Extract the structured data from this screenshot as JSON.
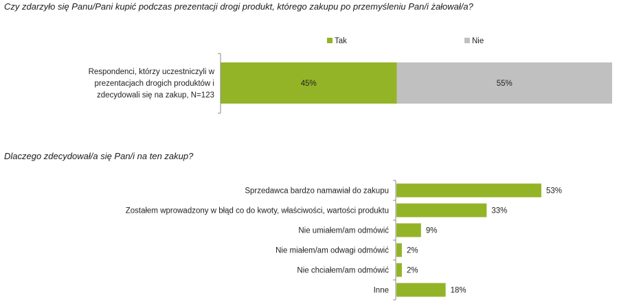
{
  "chart_data": [
    {
      "type": "bar",
      "stacked": true,
      "orientation": "horizontal",
      "title": "Czy zdarzyło się Panu/Pani kupić podczas prezentacji drogi produkt, którego zakupu po przemyśleniu Pan/i żałował/a?",
      "categories": [
        "Respondenci, którzy uczestniczyli w prezentacjach drogich produktów i zdecydowali się na zakup, N=123"
      ],
      "category_lines": [
        "Respondenci, którzy uczestniczyli w",
        "prezentacjach drogich produktów i",
        "zdecydowali się na zakup, N=123"
      ],
      "series": [
        {
          "name": "Tak",
          "values": [
            45
          ],
          "labels": [
            "45%"
          ],
          "color": "#94b427"
        },
        {
          "name": "Nie",
          "values": [
            55
          ],
          "labels": [
            "55%"
          ],
          "color": "#c0c0c0"
        }
      ],
      "legend": "top",
      "xlim": [
        0,
        100
      ]
    },
    {
      "type": "bar",
      "orientation": "horizontal",
      "title": "Dlaczego zdecydował/a się Pan/i na ten zakup?",
      "categories": [
        "Sprzedawca bardzo namawiał do zakupu",
        "Zostałem wprowadzony w błąd co do kwoty, właściwości, wartości produktu",
        "Nie umiałem/am odmówić",
        "Nie miałem/am odwagi odmówić",
        "Nie chciałem/am odmówić",
        "Inne"
      ],
      "values": [
        53,
        33,
        9,
        2,
        2,
        18
      ],
      "labels": [
        "53%",
        "33%",
        "9%",
        "2%",
        "2%",
        "18%"
      ],
      "color": "#94b427",
      "xlim": [
        0,
        100
      ]
    }
  ]
}
